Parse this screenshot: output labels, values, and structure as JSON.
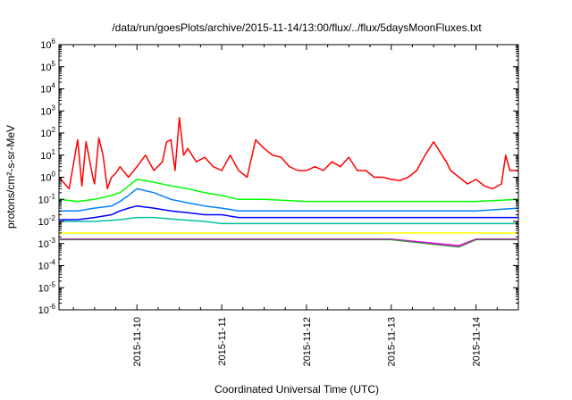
{
  "chart_data": {
    "type": "line",
    "title": "/data/run/goesPlots/archive/2015-11-14/13:00/flux/../flux/5daysMoonFluxes.txt",
    "xlabel": "Coordinated Universal Time (UTC)",
    "ylabel": "protons/cm²-s-sr-MeV",
    "yscale": "log",
    "ylim": [
      1e-06,
      1000000.0
    ],
    "xlim": [
      0.08,
      5.5
    ],
    "x_unit": "days after 2015-11-09 00:00 UTC",
    "y_ticks": [
      {
        "base": "10",
        "exp": "-6",
        "value": 1e-06
      },
      {
        "base": "10",
        "exp": "-5",
        "value": 1e-05
      },
      {
        "base": "10",
        "exp": "-4",
        "value": 0.0001
      },
      {
        "base": "10",
        "exp": "-3",
        "value": 0.001
      },
      {
        "base": "10",
        "exp": "-2",
        "value": 0.01
      },
      {
        "base": "10",
        "exp": "-1",
        "value": 0.1
      },
      {
        "base": "10",
        "exp": "0",
        "value": 1
      },
      {
        "base": "10",
        "exp": "1",
        "value": 10
      },
      {
        "base": "10",
        "exp": "2",
        "value": 100
      },
      {
        "base": "10",
        "exp": "3",
        "value": 1000
      },
      {
        "base": "10",
        "exp": "4",
        "value": 10000
      },
      {
        "base": "10",
        "exp": "5",
        "value": 100000
      },
      {
        "base": "10",
        "exp": "6",
        "value": 1000000
      }
    ],
    "x_ticks": [
      {
        "label": "2015-11-10",
        "value": 1
      },
      {
        "label": "2015-11-11",
        "value": 2
      },
      {
        "label": "2015-11-12",
        "value": 3
      },
      {
        "label": "2015-11-13",
        "value": 4
      },
      {
        "label": "2015-11-14",
        "value": 5
      }
    ],
    "grid": false,
    "legend": "none",
    "series": [
      {
        "color": "#ff0000",
        "x": [
          0.08,
          0.2,
          0.3,
          0.35,
          0.4,
          0.48,
          0.5,
          0.55,
          0.6,
          0.65,
          0.7,
          0.75,
          0.8,
          0.9,
          1.0,
          1.1,
          1.2,
          1.3,
          1.35,
          1.4,
          1.45,
          1.5,
          1.55,
          1.6,
          1.7,
          1.8,
          1.9,
          2.0,
          2.1,
          2.2,
          2.3,
          2.4,
          2.5,
          2.6,
          2.7,
          2.8,
          2.9,
          3.0,
          3.1,
          3.2,
          3.3,
          3.4,
          3.5,
          3.6,
          3.7,
          3.8,
          3.9,
          4.0,
          4.1,
          4.2,
          4.3,
          4.4,
          4.5,
          4.6,
          4.65,
          4.7,
          4.8,
          4.9,
          5.0,
          5.1,
          5.2,
          5.3,
          5.35,
          5.4,
          5.5
        ],
        "y": [
          1,
          0.3,
          50,
          0.4,
          40,
          1,
          0.5,
          60,
          10,
          0.3,
          1,
          1.5,
          3,
          1,
          3,
          10,
          2,
          5,
          40,
          50,
          2,
          500,
          10,
          20,
          5,
          8,
          3,
          2,
          10,
          2,
          1,
          50,
          20,
          10,
          8,
          3,
          2,
          2,
          3,
          2,
          5,
          3,
          8,
          2,
          2,
          1,
          1,
          0.8,
          0.7,
          1,
          2,
          10,
          40,
          10,
          5,
          2,
          1,
          0.5,
          0.8,
          0.4,
          0.3,
          0.5,
          10,
          2,
          2
        ]
      },
      {
        "color": "#00ff00",
        "x": [
          0.08,
          0.3,
          0.5,
          0.7,
          0.8,
          0.9,
          1.0,
          1.2,
          1.4,
          1.6,
          1.8,
          2.0,
          2.2,
          2.5,
          3.0,
          3.5,
          4.0,
          4.5,
          5.0,
          5.5
        ],
        "y": [
          0.1,
          0.08,
          0.1,
          0.15,
          0.2,
          0.4,
          0.8,
          0.6,
          0.4,
          0.3,
          0.2,
          0.15,
          0.1,
          0.1,
          0.08,
          0.08,
          0.08,
          0.08,
          0.08,
          0.1
        ]
      },
      {
        "color": "#0080ff",
        "x": [
          0.08,
          0.3,
          0.5,
          0.7,
          0.8,
          0.9,
          1.0,
          1.2,
          1.4,
          1.6,
          1.8,
          2.0,
          2.2,
          2.5,
          3.0,
          3.5,
          4.0,
          4.5,
          5.0,
          5.5
        ],
        "y": [
          0.03,
          0.03,
          0.04,
          0.05,
          0.08,
          0.15,
          0.3,
          0.2,
          0.1,
          0.07,
          0.05,
          0.04,
          0.03,
          0.03,
          0.03,
          0.03,
          0.03,
          0.03,
          0.03,
          0.04
        ]
      },
      {
        "color": "#0000ff",
        "x": [
          0.08,
          0.3,
          0.5,
          0.7,
          0.8,
          0.9,
          1.0,
          1.2,
          1.4,
          1.6,
          1.8,
          2.0,
          2.2,
          2.5,
          3.0,
          3.5,
          4.0,
          4.5,
          5.0,
          5.5
        ],
        "y": [
          0.012,
          0.012,
          0.015,
          0.02,
          0.03,
          0.04,
          0.05,
          0.04,
          0.03,
          0.025,
          0.02,
          0.02,
          0.015,
          0.015,
          0.015,
          0.015,
          0.015,
          0.015,
          0.015,
          0.015
        ]
      },
      {
        "color": "#00c0a0",
        "x": [
          0.08,
          0.5,
          0.8,
          1.0,
          1.2,
          1.5,
          1.8,
          2.0,
          2.5,
          3.0,
          3.5,
          4.0,
          4.5,
          5.0,
          5.5
        ],
        "y": [
          0.01,
          0.01,
          0.012,
          0.015,
          0.015,
          0.012,
          0.01,
          0.008,
          0.008,
          0.008,
          0.008,
          0.008,
          0.008,
          0.008,
          0.008
        ]
      },
      {
        "color": "#ffff00",
        "x": [
          0.08,
          1.0,
          2.0,
          3.0,
          4.0,
          5.0,
          5.5
        ],
        "y": [
          0.003,
          0.003,
          0.003,
          0.003,
          0.003,
          0.003,
          0.003
        ]
      },
      {
        "color": "#ff00ff",
        "x": [
          0.08,
          1.0,
          2.0,
          3.0,
          4.0,
          4.8,
          5.0,
          5.5
        ],
        "y": [
          0.0016,
          0.0016,
          0.0016,
          0.0016,
          0.0016,
          0.0008,
          0.0016,
          0.0016
        ]
      },
      {
        "color": "#408040",
        "x": [
          0.08,
          1.0,
          2.0,
          3.0,
          4.0,
          4.8,
          5.0,
          5.5
        ],
        "y": [
          0.0015,
          0.0015,
          0.0015,
          0.0015,
          0.0015,
          0.0007,
          0.0015,
          0.0015
        ]
      }
    ]
  }
}
